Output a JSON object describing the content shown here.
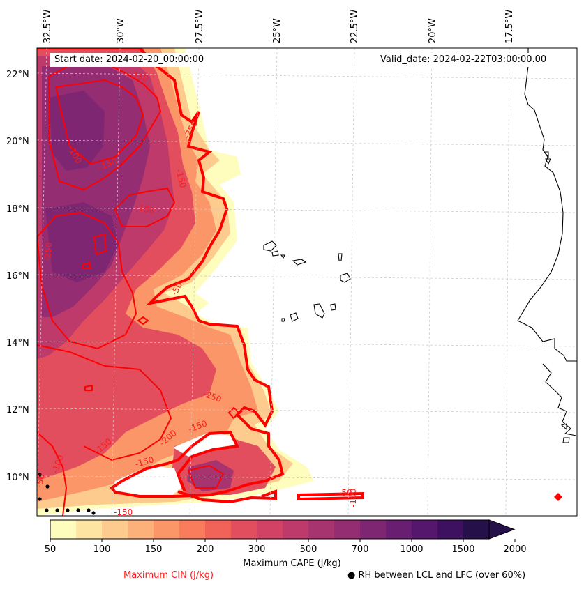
{
  "map": {
    "start_date": "Start date: 2024-02-20_00:00:00",
    "valid_date": "Valid_date: 2024-02-22T03:00:00.00",
    "lon_labels": [
      "32.5°W",
      "30°W",
      "27.5°W",
      "25°W",
      "22.5°W",
      "20°W",
      "17.5°W"
    ],
    "lat_labels": [
      "22°N",
      "20°N",
      "18°N",
      "16°N",
      "14°N",
      "12°N",
      "10°N"
    ],
    "cin_contour_labels": [
      "-150",
      "-100",
      "-150",
      "-150",
      "-150",
      "-250",
      "-50",
      "-250",
      "-250",
      "-200",
      "-150",
      "-150",
      "-100",
      "-50",
      "-150",
      "-50",
      "-100",
      "-150"
    ],
    "colors": {
      "cin": "#ff0000",
      "coast": "#000000",
      "grid": "#cccccc"
    }
  },
  "colorbar": {
    "title": "Maximum CAPE (J/kg)",
    "ticks": [
      "50",
      "100",
      "150",
      "200",
      "300",
      "500",
      "700",
      "1000",
      "1500",
      "2000"
    ],
    "colors": [
      "#fefdbe",
      "#fde4a3",
      "#fdcb8d",
      "#fcb17b",
      "#fb9669",
      "#f97c5d",
      "#f16259",
      "#e34e5e",
      "#d14265",
      "#bd3a6b",
      "#a8346f",
      "#942d72",
      "#7f2673",
      "#6a1e72",
      "#54176d",
      "#3d115f",
      "#261049"
    ]
  },
  "legend": {
    "cin_label": "Maximum CIN (J/kg)",
    "rh_label": "● RH between LCL and LFC (over 60%)"
  }
}
